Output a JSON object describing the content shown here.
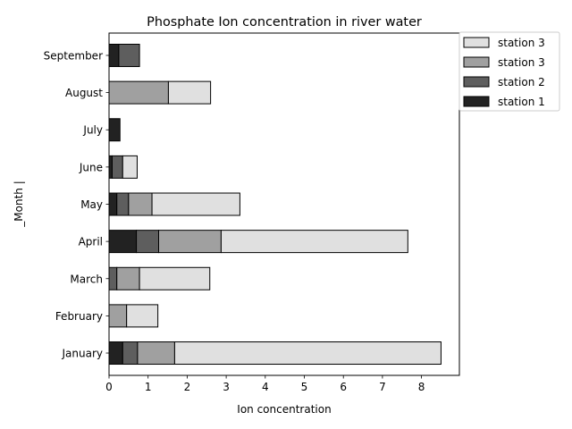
{
  "chart_data": {
    "type": "bar",
    "orientation": "horizontal",
    "stacked": true,
    "title": "Phosphate Ion concentration in river water",
    "xlabel": "Ion concentration",
    "ylabel": "_Month |",
    "categories": [
      "January",
      "February",
      "March",
      "April",
      "May",
      "June",
      "July",
      "August",
      "September"
    ],
    "xlim": [
      0,
      8.97
    ],
    "xticks": [
      0,
      1,
      2,
      3,
      4,
      5,
      6,
      7,
      8
    ],
    "grid": false,
    "legend_position": "outside top-right",
    "series": [
      {
        "name": "station 1",
        "color": "#222222",
        "values": [
          0.35,
          0,
          0,
          0.7,
          0.2,
          0.08,
          0.28,
          0,
          0.25
        ]
      },
      {
        "name": "station 2",
        "color": "#5e5e5e",
        "values": [
          0.38,
          0,
          0.2,
          0.57,
          0.3,
          0.27,
          0,
          0,
          0.53
        ]
      },
      {
        "name": "station 3",
        "color": "#a0a0a0",
        "values": [
          0.95,
          0.45,
          0.58,
          1.6,
          0.6,
          0,
          0,
          1.52,
          0
        ]
      },
      {
        "name": "station 3",
        "color": "#e0e0e0",
        "values": [
          6.82,
          0.8,
          1.8,
          4.78,
          2.25,
          0.37,
          0,
          1.08,
          0
        ]
      }
    ]
  }
}
